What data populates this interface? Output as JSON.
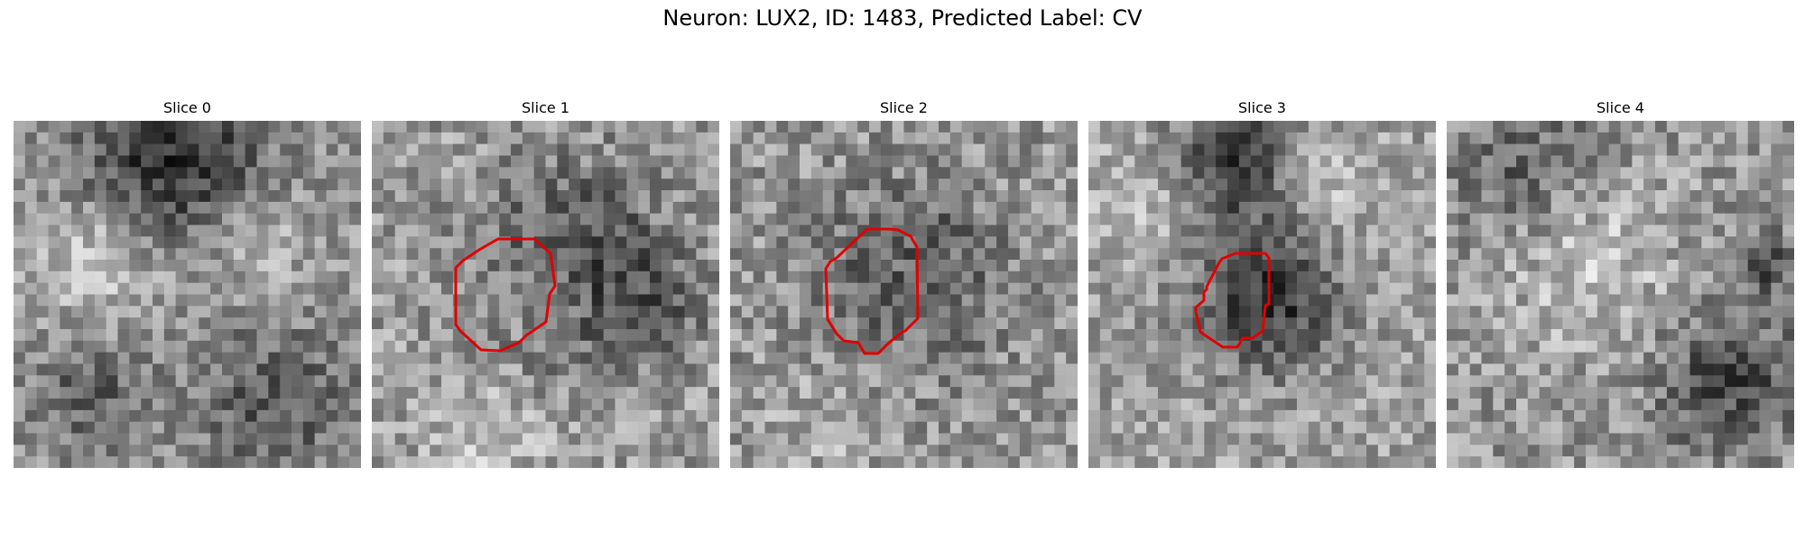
{
  "figure": {
    "title": "Neuron: LUX2, ID: 1483, Predicted Label: CV",
    "contour_color": "#e00000",
    "slices": [
      {
        "title": "Slice 0",
        "has_contour": false
      },
      {
        "title": "Slice 1",
        "has_contour": true
      },
      {
        "title": "Slice 2",
        "has_contour": true
      },
      {
        "title": "Slice 3",
        "has_contour": true
      },
      {
        "title": "Slice 4",
        "has_contour": false
      }
    ]
  }
}
